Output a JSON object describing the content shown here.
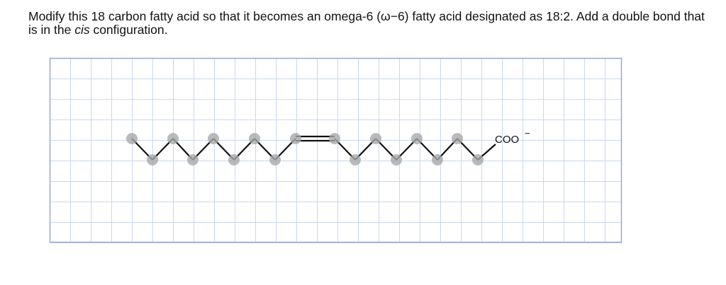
{
  "question": {
    "text_before": "Modify this 18 carbon fatty acid so that it becomes an omega-6 (ω−6) fatty acid designated as 18:2. Add a double bond that is in the ",
    "emphasis": "cis",
    "text_after": " configuration."
  },
  "drawing": {
    "group_label": "COO",
    "charge": "−"
  }
}
